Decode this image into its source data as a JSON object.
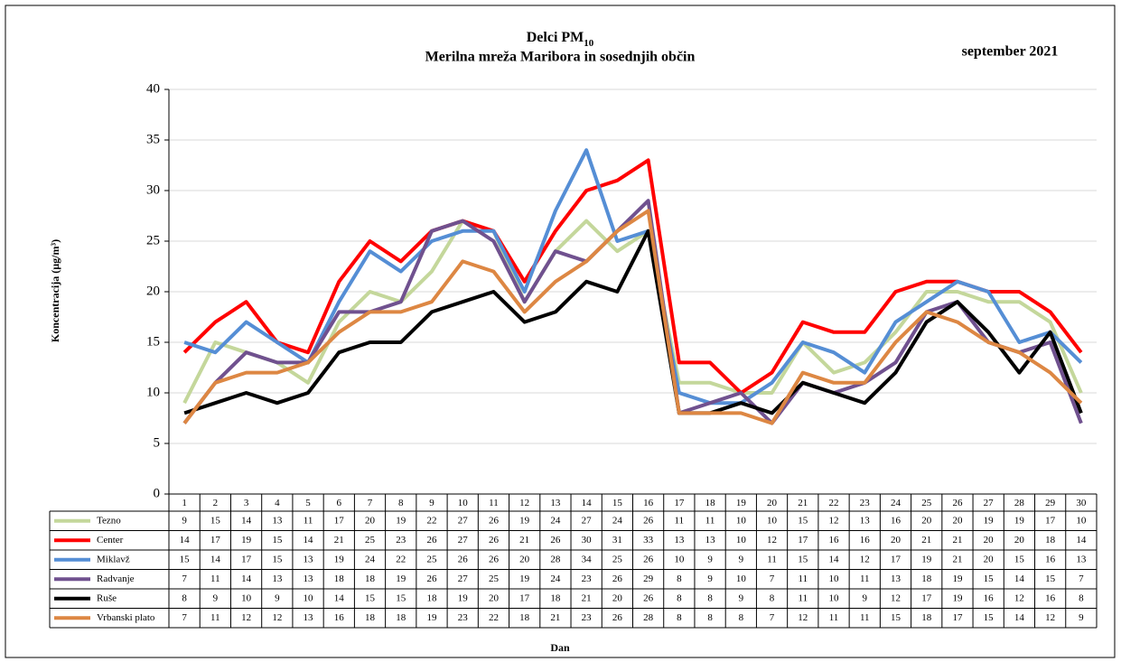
{
  "chart_data": {
    "type": "line",
    "title": "Delci PM",
    "title_sub": "10",
    "subtitle": "Merilna mreža Maribora in sosednjih občin",
    "date_label": "september 2021",
    "y_label": "Koncentracija (µg/m³)",
    "x_label": "Dan",
    "categories": [
      1,
      2,
      3,
      4,
      5,
      6,
      7,
      8,
      9,
      10,
      11,
      12,
      13,
      14,
      15,
      16,
      17,
      18,
      19,
      20,
      21,
      22,
      23,
      24,
      25,
      26,
      27,
      28,
      29,
      30
    ],
    "series": [
      {
        "name": "Tezno",
        "color": "#c4d79b",
        "values": [
          9,
          15,
          14,
          13,
          11,
          17,
          20,
          19,
          22,
          27,
          26,
          19,
          24,
          27,
          24,
          26,
          11,
          11,
          10,
          10,
          15,
          12,
          13,
          16,
          20,
          20,
          19,
          19,
          17,
          10
        ]
      },
      {
        "name": "Center",
        "color": "#ff0000",
        "values": [
          14,
          17,
          19,
          15,
          14,
          21,
          25,
          23,
          26,
          27,
          26,
          21,
          26,
          30,
          31,
          33,
          13,
          13,
          10,
          12,
          17,
          16,
          16,
          20,
          21,
          21,
          20,
          20,
          18,
          14
        ]
      },
      {
        "name": "Miklavž",
        "color": "#558ed5",
        "values": [
          15,
          14,
          17,
          15,
          13,
          19,
          24,
          22,
          25,
          26,
          26,
          20,
          28,
          34,
          25,
          26,
          10,
          9,
          9,
          11,
          15,
          14,
          12,
          17,
          19,
          21,
          20,
          15,
          16,
          13
        ]
      },
      {
        "name": "Radvanje",
        "color": "#70518f",
        "values": [
          7,
          11,
          14,
          13,
          13,
          18,
          18,
          19,
          26,
          27,
          25,
          19,
          24,
          23,
          26,
          29,
          8,
          9,
          10,
          7,
          11,
          10,
          11,
          13,
          18,
          19,
          15,
          14,
          15,
          7
        ]
      },
      {
        "name": "Ruše",
        "color": "#000000",
        "values": [
          8,
          9,
          10,
          9,
          10,
          14,
          15,
          15,
          18,
          19,
          20,
          17,
          18,
          21,
          20,
          26,
          8,
          8,
          9,
          8,
          11,
          10,
          9,
          12,
          17,
          19,
          16,
          12,
          16,
          8
        ]
      },
      {
        "name": "Vrbanski plato",
        "color": "#dd8743",
        "values": [
          7,
          11,
          12,
          12,
          13,
          16,
          18,
          18,
          19,
          23,
          22,
          18,
          21,
          23,
          26,
          28,
          8,
          8,
          8,
          7,
          12,
          11,
          11,
          15,
          18,
          17,
          15,
          14,
          12,
          9
        ]
      }
    ],
    "ylim": [
      0,
      40
    ],
    "yticks": [
      0,
      5,
      10,
      15,
      20,
      25,
      30,
      35,
      40
    ],
    "grid": true
  }
}
